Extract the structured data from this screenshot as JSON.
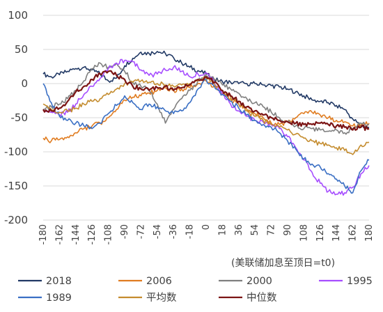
{
  "chart_data": {
    "type": "line",
    "xlabel": "(美联储加息至顶日=t0)",
    "ylabel": "",
    "xlim": [
      -180,
      180
    ],
    "ylim": [
      -200,
      100
    ],
    "x_ticks": [
      "-180",
      "-162",
      "-144",
      "-126",
      "-108",
      "-90",
      "-72",
      "-54",
      "-36",
      "-18",
      "0",
      "18",
      "36",
      "54",
      "72",
      "90",
      "108",
      "126",
      "144",
      "162",
      "180"
    ],
    "y_ticks": [
      "100",
      "50",
      "0",
      "-50",
      "-100",
      "-150",
      "-200"
    ],
    "grid": "horizontal",
    "legend_position": "bottom",
    "series": [
      {
        "name": "2018",
        "color": "#203864",
        "points": [
          [
            -180,
            14
          ],
          [
            -171,
            10
          ],
          [
            -162,
            13
          ],
          [
            -153,
            18
          ],
          [
            -144,
            22
          ],
          [
            -135,
            24
          ],
          [
            -126,
            20
          ],
          [
            -117,
            14
          ],
          [
            -108,
            4
          ],
          [
            -99,
            8
          ],
          [
            -90,
            26
          ],
          [
            -81,
            37
          ],
          [
            -72,
            46
          ],
          [
            -63,
            44
          ],
          [
            -54,
            47
          ],
          [
            -45,
            44
          ],
          [
            -36,
            38
          ],
          [
            -27,
            30
          ],
          [
            -18,
            24
          ],
          [
            -9,
            19
          ],
          [
            0,
            14
          ],
          [
            9,
            6
          ],
          [
            18,
            3
          ],
          [
            27,
            2
          ],
          [
            36,
            0
          ],
          [
            45,
            0
          ],
          [
            54,
            0
          ],
          [
            63,
            -2
          ],
          [
            72,
            -3
          ],
          [
            81,
            -5
          ],
          [
            90,
            -8
          ],
          [
            99,
            -12
          ],
          [
            108,
            -18
          ],
          [
            117,
            -24
          ],
          [
            126,
            -26
          ],
          [
            135,
            -28
          ],
          [
            144,
            -32
          ],
          [
            153,
            -38
          ],
          [
            162,
            -52
          ],
          [
            171,
            -62
          ],
          [
            180,
            -64
          ]
        ]
      },
      {
        "name": "2006",
        "color": "#E07C20",
        "points": [
          [
            -180,
            -80
          ],
          [
            -171,
            -84
          ],
          [
            -162,
            -82
          ],
          [
            -153,
            -78
          ],
          [
            -144,
            -72
          ],
          [
            -135,
            -66
          ],
          [
            -126,
            -62
          ],
          [
            -117,
            -58
          ],
          [
            -108,
            -50
          ],
          [
            -99,
            -38
          ],
          [
            -90,
            -24
          ],
          [
            -81,
            -20
          ],
          [
            -72,
            -18
          ],
          [
            -63,
            -14
          ],
          [
            -54,
            -10
          ],
          [
            -45,
            -6
          ],
          [
            -36,
            -10
          ],
          [
            -27,
            -8
          ],
          [
            -18,
            -6
          ],
          [
            -9,
            0
          ],
          [
            0,
            4
          ],
          [
            9,
            -4
          ],
          [
            18,
            -14
          ],
          [
            27,
            -22
          ],
          [
            36,
            -30
          ],
          [
            45,
            -38
          ],
          [
            54,
            -44
          ],
          [
            63,
            -50
          ],
          [
            72,
            -58
          ],
          [
            81,
            -60
          ],
          [
            90,
            -56
          ],
          [
            99,
            -50
          ],
          [
            108,
            -44
          ],
          [
            117,
            -42
          ],
          [
            126,
            -46
          ],
          [
            135,
            -50
          ],
          [
            144,
            -54
          ],
          [
            153,
            -56
          ],
          [
            162,
            -62
          ],
          [
            171,
            -60
          ],
          [
            180,
            -58
          ]
        ]
      },
      {
        "name": "2000",
        "color": "#7F7F7F",
        "points": [
          [
            -180,
            -38
          ],
          [
            -171,
            -34
          ],
          [
            -162,
            -30
          ],
          [
            -153,
            -22
          ],
          [
            -144,
            -10
          ],
          [
            -135,
            4
          ],
          [
            -126,
            22
          ],
          [
            -117,
            30
          ],
          [
            -108,
            24
          ],
          [
            -99,
            30
          ],
          [
            -90,
            18
          ],
          [
            -81,
            2
          ],
          [
            -72,
            -4
          ],
          [
            -63,
            -10
          ],
          [
            -54,
            -30
          ],
          [
            -45,
            -58
          ],
          [
            -36,
            -38
          ],
          [
            -27,
            -22
          ],
          [
            -18,
            -10
          ],
          [
            -9,
            4
          ],
          [
            0,
            12
          ],
          [
            9,
            6
          ],
          [
            18,
            -2
          ],
          [
            27,
            -8
          ],
          [
            36,
            -14
          ],
          [
            45,
            -22
          ],
          [
            54,
            -28
          ],
          [
            63,
            -34
          ],
          [
            72,
            -42
          ],
          [
            81,
            -50
          ],
          [
            90,
            -56
          ],
          [
            99,
            -62
          ],
          [
            108,
            -66
          ],
          [
            117,
            -66
          ],
          [
            126,
            -68
          ],
          [
            135,
            -70
          ],
          [
            144,
            -68
          ],
          [
            153,
            -72
          ],
          [
            162,
            -66
          ],
          [
            171,
            -58
          ],
          [
            180,
            -60
          ]
        ]
      },
      {
        "name": "1995",
        "color": "#A64DFF",
        "points": [
          [
            -180,
            -38
          ],
          [
            -171,
            -42
          ],
          [
            -162,
            -46
          ],
          [
            -153,
            -42
          ],
          [
            -144,
            -30
          ],
          [
            -135,
            -16
          ],
          [
            -126,
            -4
          ],
          [
            -117,
            8
          ],
          [
            -108,
            22
          ],
          [
            -99,
            30
          ],
          [
            -90,
            34
          ],
          [
            -81,
            32
          ],
          [
            -72,
            20
          ],
          [
            -63,
            12
          ],
          [
            -54,
            14
          ],
          [
            -45,
            20
          ],
          [
            -36,
            24
          ],
          [
            -27,
            18
          ],
          [
            -18,
            10
          ],
          [
            -9,
            14
          ],
          [
            0,
            16
          ],
          [
            9,
            2
          ],
          [
            18,
            -16
          ],
          [
            27,
            -30
          ],
          [
            36,
            -40
          ],
          [
            45,
            -48
          ],
          [
            54,
            -54
          ],
          [
            63,
            -56
          ],
          [
            72,
            -60
          ],
          [
            81,
            -66
          ],
          [
            90,
            -78
          ],
          [
            99,
            -94
          ],
          [
            108,
            -112
          ],
          [
            117,
            -130
          ],
          [
            126,
            -146
          ],
          [
            135,
            -158
          ],
          [
            144,
            -162
          ],
          [
            153,
            -160
          ],
          [
            162,
            -152
          ],
          [
            171,
            -132
          ],
          [
            180,
            -120
          ]
        ]
      },
      {
        "name": "1989",
        "color": "#3A6FC4",
        "points": [
          [
            -180,
            0
          ],
          [
            -171,
            -28
          ],
          [
            -162,
            -48
          ],
          [
            -153,
            -54
          ],
          [
            -144,
            -58
          ],
          [
            -135,
            -62
          ],
          [
            -126,
            -66
          ],
          [
            -117,
            -58
          ],
          [
            -108,
            -44
          ],
          [
            -99,
            -32
          ],
          [
            -90,
            -18
          ],
          [
            -81,
            -28
          ],
          [
            -72,
            -38
          ],
          [
            -63,
            -30
          ],
          [
            -54,
            -34
          ],
          [
            -45,
            -40
          ],
          [
            -36,
            -44
          ],
          [
            -27,
            -40
          ],
          [
            -18,
            -28
          ],
          [
            -9,
            -8
          ],
          [
            0,
            6
          ],
          [
            9,
            -4
          ],
          [
            18,
            -16
          ],
          [
            27,
            -26
          ],
          [
            36,
            -36
          ],
          [
            45,
            -46
          ],
          [
            54,
            -54
          ],
          [
            63,
            -60
          ],
          [
            72,
            -64
          ],
          [
            81,
            -72
          ],
          [
            90,
            -84
          ],
          [
            99,
            -96
          ],
          [
            108,
            -110
          ],
          [
            117,
            -118
          ],
          [
            126,
            -122
          ],
          [
            135,
            -132
          ],
          [
            144,
            -140
          ],
          [
            153,
            -150
          ],
          [
            162,
            -160
          ],
          [
            171,
            -128
          ],
          [
            180,
            -112
          ]
        ]
      },
      {
        "name": "平均数",
        "color": "#C48C2E",
        "points": [
          [
            -180,
            -30
          ],
          [
            -171,
            -38
          ],
          [
            -162,
            -42
          ],
          [
            -153,
            -40
          ],
          [
            -144,
            -36
          ],
          [
            -135,
            -30
          ],
          [
            -126,
            -26
          ],
          [
            -117,
            -22
          ],
          [
            -108,
            -16
          ],
          [
            -99,
            -8
          ],
          [
            -90,
            0
          ],
          [
            -81,
            2
          ],
          [
            -72,
            4
          ],
          [
            -63,
            2
          ],
          [
            -54,
            0
          ],
          [
            -45,
            -2
          ],
          [
            -36,
            -4
          ],
          [
            -27,
            -2
          ],
          [
            -18,
            0
          ],
          [
            -9,
            4
          ],
          [
            0,
            8
          ],
          [
            9,
            0
          ],
          [
            18,
            -10
          ],
          [
            27,
            -20
          ],
          [
            36,
            -30
          ],
          [
            45,
            -40
          ],
          [
            54,
            -48
          ],
          [
            63,
            -54
          ],
          [
            72,
            -60
          ],
          [
            81,
            -64
          ],
          [
            90,
            -68
          ],
          [
            99,
            -74
          ],
          [
            108,
            -80
          ],
          [
            117,
            -84
          ],
          [
            126,
            -88
          ],
          [
            135,
            -90
          ],
          [
            144,
            -94
          ],
          [
            153,
            -98
          ],
          [
            162,
            -104
          ],
          [
            171,
            -90
          ],
          [
            180,
            -86
          ]
        ]
      },
      {
        "name": "中位数",
        "color": "#7B1414",
        "points": [
          [
            -180,
            -38
          ],
          [
            -171,
            -40
          ],
          [
            -162,
            -36
          ],
          [
            -153,
            -26
          ],
          [
            -144,
            -12
          ],
          [
            -135,
            -4
          ],
          [
            -126,
            6
          ],
          [
            -117,
            14
          ],
          [
            -108,
            18
          ],
          [
            -99,
            12
          ],
          [
            -90,
            6
          ],
          [
            -81,
            -4
          ],
          [
            -72,
            -8
          ],
          [
            -63,
            -10
          ],
          [
            -54,
            -6
          ],
          [
            -45,
            -4
          ],
          [
            -36,
            -10
          ],
          [
            -27,
            -6
          ],
          [
            -18,
            -2
          ],
          [
            -9,
            6
          ],
          [
            0,
            10
          ],
          [
            9,
            2
          ],
          [
            18,
            -10
          ],
          [
            27,
            -18
          ],
          [
            36,
            -26
          ],
          [
            45,
            -34
          ],
          [
            54,
            -40
          ],
          [
            63,
            -46
          ],
          [
            72,
            -50
          ],
          [
            81,
            -54
          ],
          [
            90,
            -56
          ],
          [
            99,
            -58
          ],
          [
            108,
            -60
          ],
          [
            117,
            -60
          ],
          [
            126,
            -58
          ],
          [
            135,
            -60
          ],
          [
            144,
            -62
          ],
          [
            153,
            -64
          ],
          [
            162,
            -68
          ],
          [
            171,
            -64
          ],
          [
            180,
            -66
          ]
        ]
      }
    ]
  }
}
